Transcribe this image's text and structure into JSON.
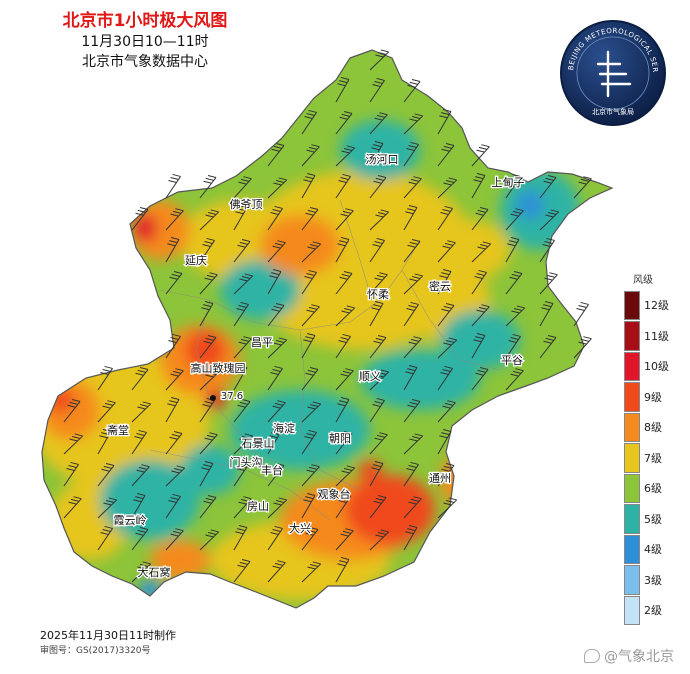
{
  "title": {
    "main": "北京市1小时极大风图",
    "time": "11月30日10—11时",
    "org": "北京市气象数据中心"
  },
  "seal": {
    "ring_text": "BEIJING METEOROLOGICAL SERVICE",
    "inner_text": "北京市气象局",
    "color": "#0f2a5a"
  },
  "legend": {
    "title": "风级",
    "levels": [
      {
        "label": "12级",
        "color": "#6b0a0a"
      },
      {
        "label": "11级",
        "color": "#a50f15"
      },
      {
        "label": "10级",
        "color": "#e0162b"
      },
      {
        "label": "9级",
        "color": "#f04a1c"
      },
      {
        "label": "8级",
        "color": "#f58a1f"
      },
      {
        "label": "7级",
        "color": "#e6c51e"
      },
      {
        "label": "6级",
        "color": "#8cc43a"
      },
      {
        "label": "5级",
        "color": "#2db3a5"
      },
      {
        "label": "4级",
        "color": "#2e8fd8"
      },
      {
        "label": "3级",
        "color": "#7cbfec"
      },
      {
        "label": "2级",
        "color": "#c4e3f7"
      }
    ]
  },
  "places": [
    "汤河口",
    "上甸子",
    "佛爷顶",
    "延庆",
    "怀柔",
    "密云",
    "昌平",
    "平谷",
    "高山致瑰园",
    "37.6",
    "斋堂",
    "海淀",
    "石景山",
    "朝阳",
    "顺义",
    "门头沟",
    "丰台",
    "观象台",
    "通州",
    "房山",
    "大兴",
    "霞云岭",
    "大石窝"
  ],
  "max_station": {
    "name": "高山致瑰园",
    "value": "37.6"
  },
  "footer": {
    "made": "2025年11月30日11时制作",
    "approval": "审图号：GS(2017)3320号"
  },
  "watermark": "@气象北京"
}
